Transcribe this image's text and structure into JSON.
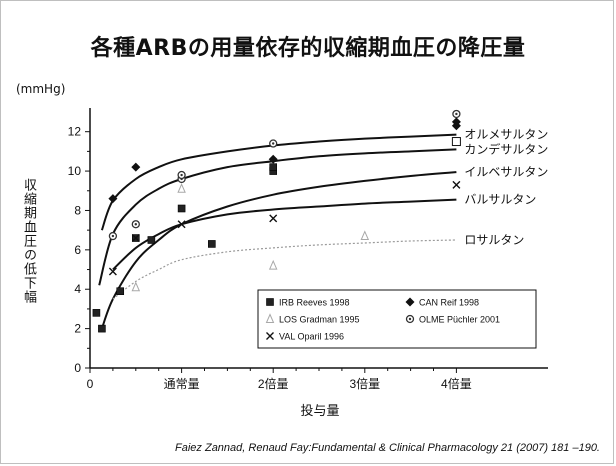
{
  "title": "各種ARBの用量依存的収縮期血圧の降圧量",
  "unit_label": "(mmHg)",
  "ylabel": "収縮期血圧の低下幅",
  "xlabel": "投与量",
  "citation": "Faiez Zannad, Renaud Fay:Fundamental & Clinical Pharmacology 21 (2007) 181 –190.",
  "chart_data": {
    "type": "scatter",
    "xlim": [
      0,
      5
    ],
    "ylim": [
      0,
      13
    ],
    "x_ticks": [
      {
        "value": 0,
        "label": "0"
      },
      {
        "value": 1,
        "label": "通常量"
      },
      {
        "value": 2,
        "label": "2倍量"
      },
      {
        "value": 3,
        "label": "3倍量"
      },
      {
        "value": 4,
        "label": "4倍量"
      }
    ],
    "y_ticks": [
      {
        "value": 0,
        "label": "0"
      },
      {
        "value": 2,
        "label": "2"
      },
      {
        "value": 4,
        "label": "4"
      },
      {
        "value": 6,
        "label": "6"
      },
      {
        "value": 8,
        "label": "8"
      },
      {
        "value": 10,
        "label": "10"
      },
      {
        "value": 12,
        "label": "12"
      }
    ],
    "curves": [
      {
        "label": "オルメサルタン",
        "color": "#111111",
        "dash": false,
        "points": [
          [
            0.13,
            7.0
          ],
          [
            0.25,
            8.5
          ],
          [
            0.5,
            9.6
          ],
          [
            0.75,
            10.2
          ],
          [
            1.0,
            10.6
          ],
          [
            1.5,
            11.0
          ],
          [
            2.0,
            11.3
          ],
          [
            2.5,
            11.5
          ],
          [
            3.0,
            11.65
          ],
          [
            3.5,
            11.75
          ],
          [
            4.0,
            11.85
          ]
        ]
      },
      {
        "label": "カンデサルタン",
        "color": "#111111",
        "dash": false,
        "points": [
          [
            0.1,
            4.2
          ],
          [
            0.25,
            6.8
          ],
          [
            0.5,
            8.3
          ],
          [
            0.75,
            9.1
          ],
          [
            1.0,
            9.6
          ],
          [
            1.5,
            10.2
          ],
          [
            2.0,
            10.5
          ],
          [
            2.5,
            10.75
          ],
          [
            3.0,
            10.9
          ],
          [
            3.5,
            11.0
          ],
          [
            4.0,
            11.1
          ]
        ]
      },
      {
        "label": "イルベサルタン",
        "color": "#111111",
        "dash": false,
        "points": [
          [
            0.13,
            2.0
          ],
          [
            0.25,
            3.5
          ],
          [
            0.5,
            5.4
          ],
          [
            0.75,
            6.5
          ],
          [
            1.0,
            7.3
          ],
          [
            1.5,
            8.2
          ],
          [
            2.0,
            8.8
          ],
          [
            2.5,
            9.2
          ],
          [
            3.0,
            9.5
          ],
          [
            3.5,
            9.75
          ],
          [
            4.0,
            9.95
          ]
        ]
      },
      {
        "label": "バルサルタン",
        "color": "#111111",
        "dash": false,
        "points": [
          [
            0.25,
            5.0
          ],
          [
            0.5,
            6.1
          ],
          [
            0.75,
            6.8
          ],
          [
            1.0,
            7.3
          ],
          [
            1.5,
            7.8
          ],
          [
            2.0,
            8.05
          ],
          [
            2.5,
            8.2
          ],
          [
            3.0,
            8.35
          ],
          [
            3.5,
            8.45
          ],
          [
            4.0,
            8.55
          ]
        ]
      },
      {
        "label": "ロサルタン",
        "color": "#9a9a9a",
        "dash": true,
        "points": [
          [
            0.25,
            3.5
          ],
          [
            0.5,
            4.4
          ],
          [
            0.75,
            5.0
          ],
          [
            1.0,
            5.5
          ],
          [
            1.5,
            5.9
          ],
          [
            2.0,
            6.1
          ],
          [
            2.5,
            6.25
          ],
          [
            3.0,
            6.35
          ],
          [
            3.5,
            6.45
          ],
          [
            4.0,
            6.5
          ]
        ]
      }
    ],
    "series": [
      {
        "name": "IRB Reeves 1998",
        "marker": "square",
        "color": "#222222",
        "points": [
          [
            0.07,
            2.8
          ],
          [
            0.13,
            2.0
          ],
          [
            0.33,
            3.9
          ],
          [
            0.5,
            6.6
          ],
          [
            0.67,
            6.5
          ],
          [
            1.0,
            8.1
          ],
          [
            1.33,
            6.3
          ],
          [
            2.0,
            10.0
          ],
          [
            2.0,
            10.2
          ]
        ]
      },
      {
        "name": "CAN Reif 1998",
        "marker": "diamond",
        "color": "#111111",
        "points": [
          [
            0.25,
            8.6
          ],
          [
            0.5,
            10.2
          ],
          [
            2.0,
            10.6
          ],
          [
            4.0,
            12.3
          ],
          [
            4.0,
            12.5
          ]
        ]
      },
      {
        "name": "LOS Gradman 1995",
        "marker": "triangle",
        "color": "#a8a8a8",
        "points": [
          [
            0.5,
            4.1
          ],
          [
            1.0,
            9.1
          ],
          [
            2.0,
            5.2
          ],
          [
            3.0,
            6.7
          ]
        ]
      },
      {
        "name": "OLME Püchler 2001",
        "marker": "circle",
        "color": "#333333",
        "points": [
          [
            0.25,
            6.7
          ],
          [
            0.5,
            7.3
          ],
          [
            1.0,
            9.6
          ],
          [
            1.0,
            9.8
          ],
          [
            2.0,
            11.4
          ],
          [
            4.0,
            12.9
          ]
        ]
      },
      {
        "name": "VAL Oparil 1996",
        "marker": "x",
        "color": "#111111",
        "points": [
          [
            0.25,
            4.9
          ],
          [
            0.5,
            6.6
          ],
          [
            1.0,
            7.3
          ],
          [
            2.0,
            7.6
          ],
          [
            4.0,
            9.3
          ]
        ]
      }
    ],
    "open_marker": {
      "x": 4.0,
      "y": 11.5
    },
    "legend_placement": "lower-right",
    "grid": false
  }
}
